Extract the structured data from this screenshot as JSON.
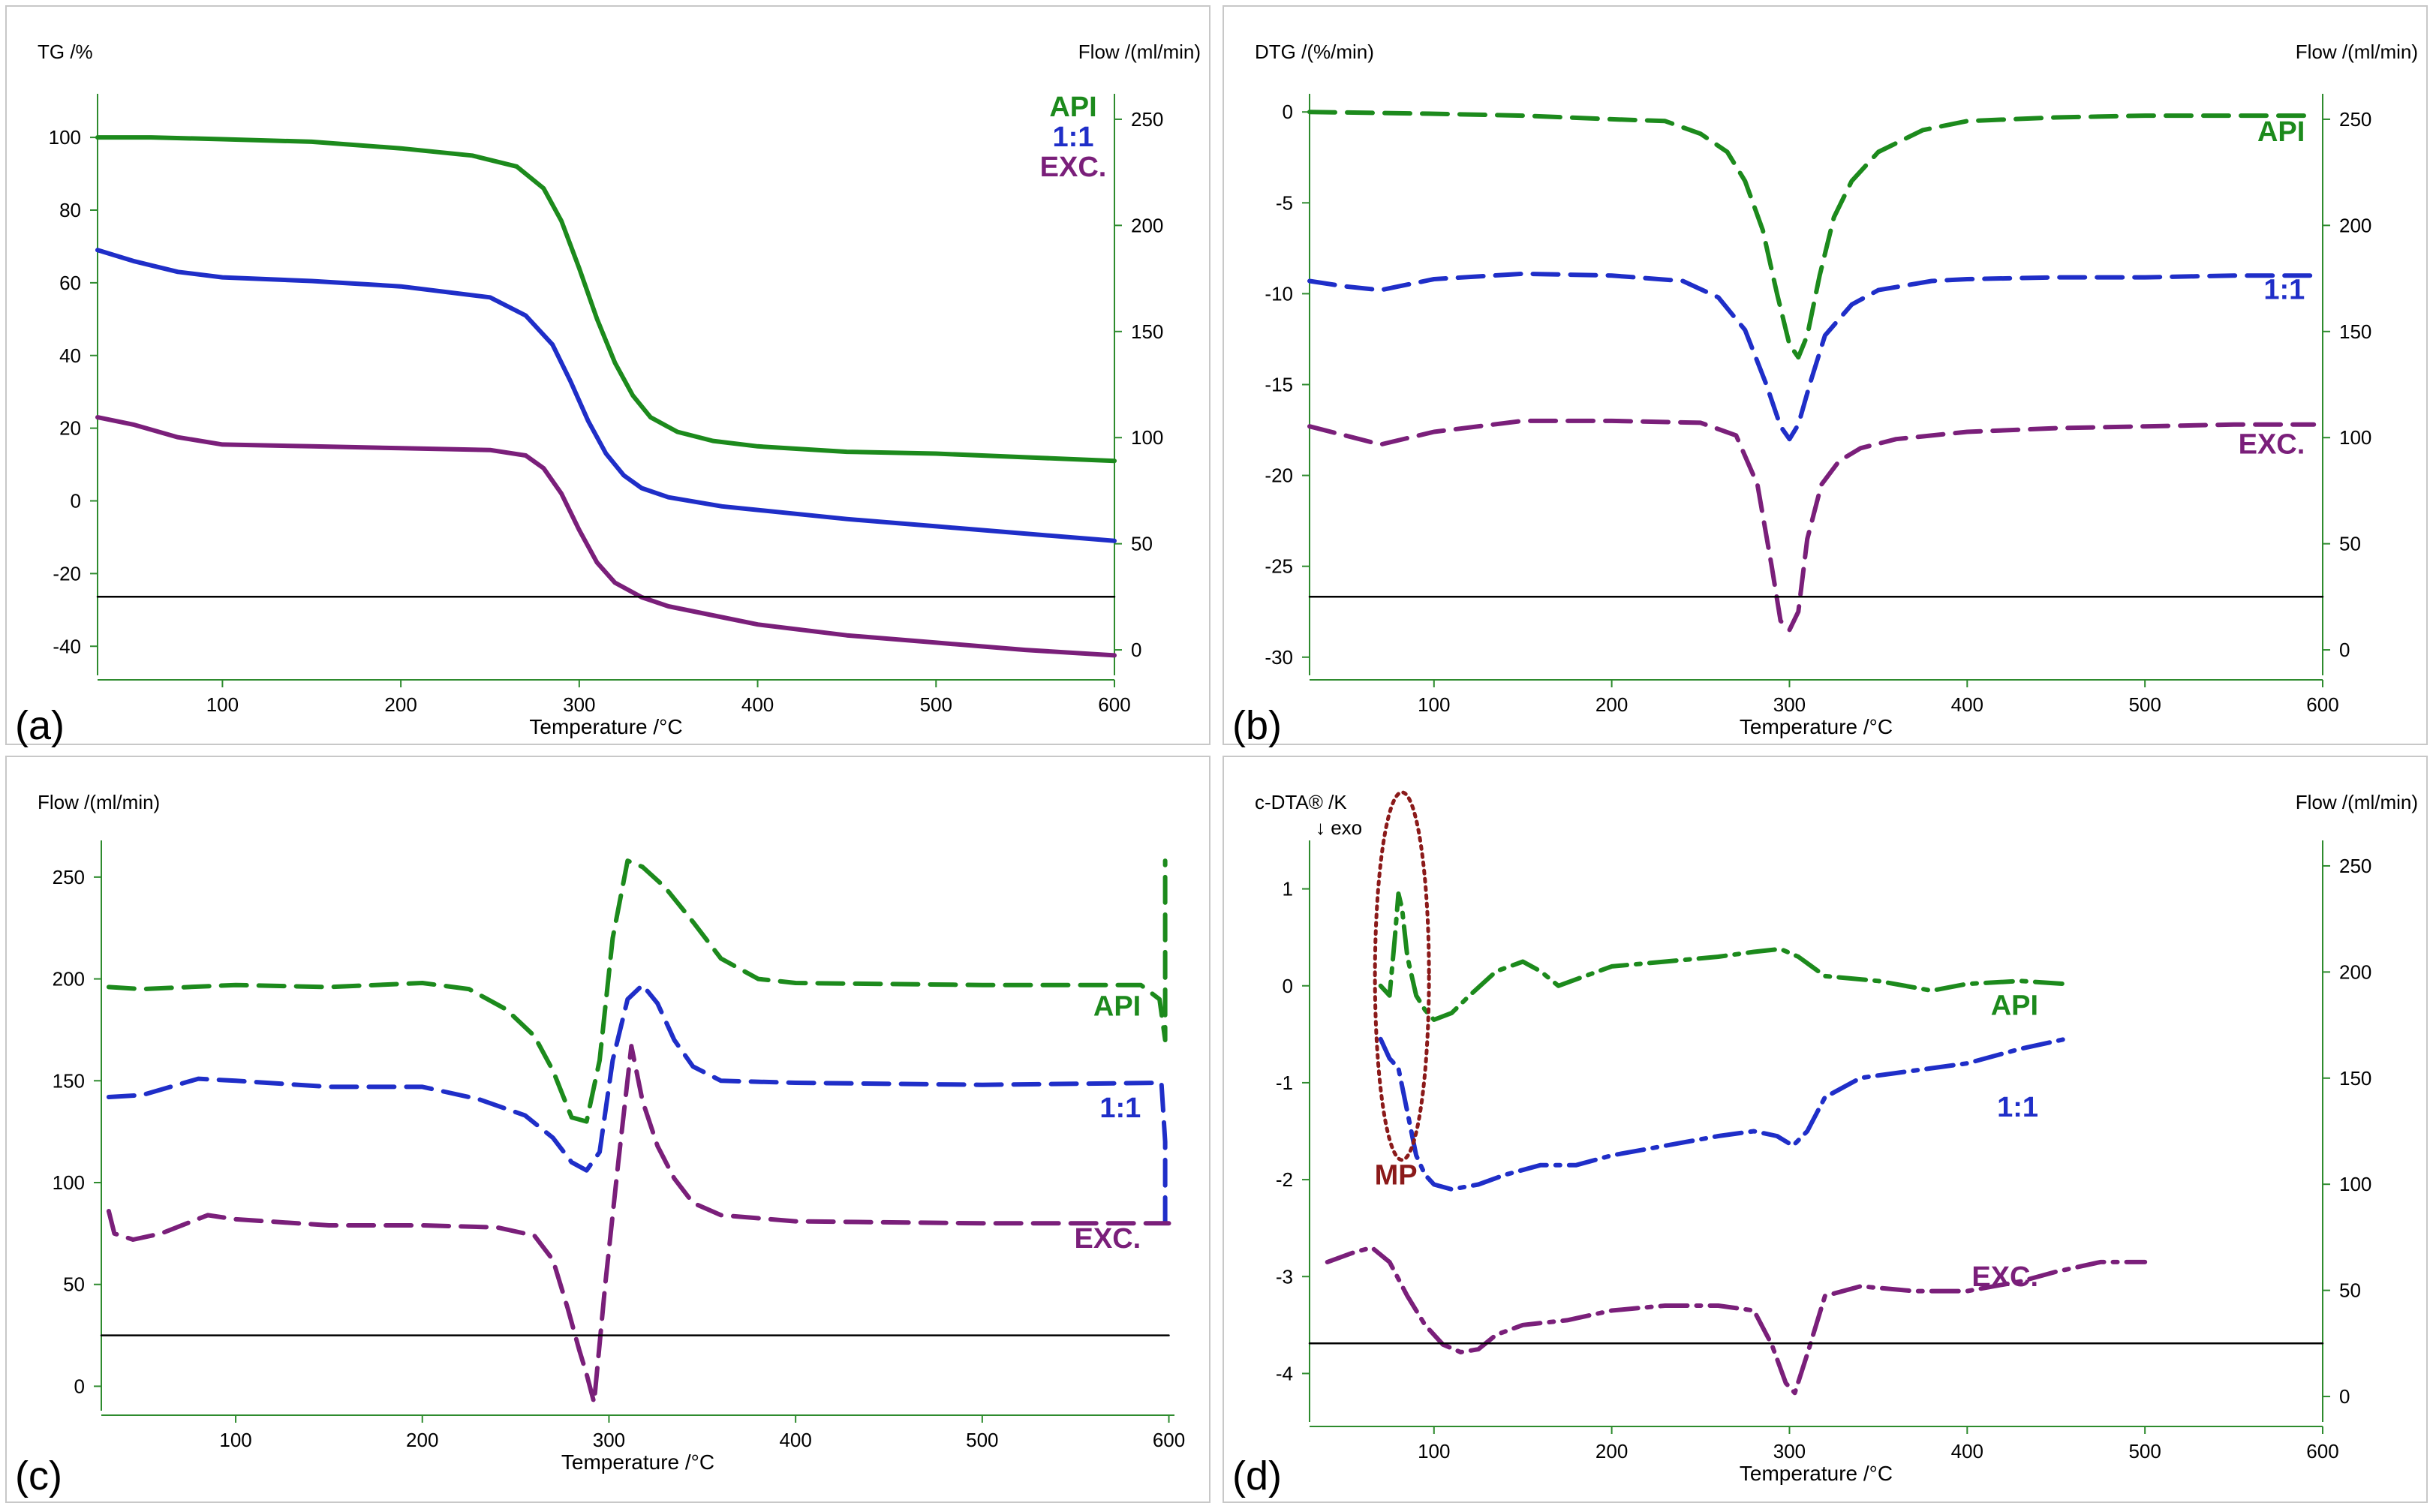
{
  "chart_data": [
    {
      "panel_label": "(a)",
      "type": "line",
      "xlabel": "Temperature /°C",
      "ylabel_left": "TG /%",
      "ylabel_right": "Flow /(ml/min)",
      "x_ticks": [
        100,
        200,
        300,
        400,
        500,
        600
      ],
      "y_left_ticks": [
        -40,
        -20,
        0,
        20,
        40,
        60,
        80,
        100
      ],
      "y_right_ticks": [
        0,
        50,
        100,
        150,
        200,
        250
      ],
      "xlim": [
        30,
        600
      ],
      "ylim_left": [
        -48,
        112
      ],
      "ylim_right": [
        -12,
        262
      ],
      "grid": false,
      "legend": [
        {
          "label": "API",
          "color": "#1c8a1c"
        },
        {
          "label": "1:1",
          "color": "#1f2ec8"
        },
        {
          "label": "EXC.",
          "color": "#7a1f7a"
        }
      ],
      "series": [
        {
          "name": "API",
          "color": "#1c8a1c",
          "dash": "solid",
          "axis": "left",
          "x": [
            30,
            60,
            100,
            150,
            200,
            240,
            265,
            280,
            290,
            300,
            310,
            320,
            330,
            340,
            355,
            375,
            400,
            450,
            500,
            550,
            600
          ],
          "y": [
            100,
            100,
            99.5,
            98.8,
            97,
            95,
            92,
            86,
            77,
            64,
            50,
            38,
            29,
            23,
            19,
            16.5,
            15,
            13.5,
            13,
            12,
            11
          ]
        },
        {
          "name": "1:1",
          "color": "#1f2ec8",
          "dash": "solid",
          "axis": "left",
          "x": [
            30,
            50,
            75,
            100,
            150,
            200,
            250,
            270,
            285,
            295,
            305,
            315,
            325,
            335,
            350,
            380,
            400,
            450,
            500,
            550,
            600
          ],
          "y": [
            69,
            66,
            63,
            61.5,
            60.5,
            59,
            56,
            51,
            43,
            33,
            22,
            13,
            7,
            3.5,
            1,
            -1.5,
            -2.5,
            -5,
            -7,
            -9,
            -11
          ]
        },
        {
          "name": "EXC.",
          "color": "#7a1f7a",
          "dash": "solid",
          "axis": "left",
          "x": [
            30,
            50,
            75,
            100,
            150,
            200,
            250,
            270,
            280,
            290,
            300,
            310,
            320,
            335,
            350,
            380,
            400,
            450,
            500,
            550,
            600
          ],
          "y": [
            23,
            21,
            17.5,
            15.5,
            15,
            14.5,
            14,
            12.5,
            9,
            2,
            -8,
            -17,
            -22.5,
            -26.5,
            -29,
            -32,
            -34,
            -37,
            -39,
            -41,
            -42.5
          ]
        },
        {
          "name": "Flow",
          "color": "#000000",
          "dash": "solid",
          "axis": "right",
          "x": [
            30,
            600
          ],
          "y": [
            25,
            25
          ]
        }
      ]
    },
    {
      "panel_label": "(b)",
      "type": "line",
      "xlabel": "Temperature /°C",
      "ylabel_left": "DTG /(%/min)",
      "ylabel_right": "Flow /(ml/min)",
      "x_ticks": [
        100,
        200,
        300,
        400,
        500,
        600
      ],
      "y_left_ticks": [
        -30,
        -25,
        -20,
        -15,
        -10,
        -5,
        0
      ],
      "y_right_ticks": [
        0,
        50,
        100,
        150,
        200,
        250
      ],
      "xlim": [
        30,
        600
      ],
      "ylim_left": [
        -31,
        1
      ],
      "ylim_right": [
        -12,
        262
      ],
      "grid": false,
      "legend": [
        {
          "label": "API",
          "color": "#1c8a1c"
        },
        {
          "label": "1:1",
          "color": "#1f2ec8"
        },
        {
          "label": "EXC.",
          "color": "#7a1f7a"
        }
      ],
      "series": [
        {
          "name": "API",
          "color": "#1c8a1c",
          "dash": "dash",
          "axis": "left",
          "x": [
            30,
            100,
            150,
            200,
            230,
            250,
            265,
            275,
            285,
            293,
            300,
            305,
            310,
            317,
            325,
            335,
            350,
            375,
            400,
            450,
            500,
            550,
            595
          ],
          "y": [
            0,
            -0.1,
            -0.2,
            -0.4,
            -0.5,
            -1.2,
            -2.2,
            -3.8,
            -6.5,
            -10,
            -12.8,
            -13.5,
            -12.3,
            -9,
            -5.8,
            -3.8,
            -2.2,
            -1,
            -0.5,
            -0.3,
            -0.2,
            -0.2,
            -0.2
          ]
        },
        {
          "name": "1:1",
          "color": "#1f2ec8",
          "dash": "dash",
          "axis": "left",
          "x": [
            30,
            50,
            70,
            100,
            150,
            200,
            240,
            260,
            275,
            287,
            295,
            300,
            305,
            312,
            320,
            335,
            350,
            380,
            400,
            450,
            500,
            550,
            595
          ],
          "y": [
            -9.3,
            -9.6,
            -9.8,
            -9.2,
            -8.9,
            -9,
            -9.3,
            -10.2,
            -12,
            -15,
            -17.3,
            -18,
            -17.2,
            -14.8,
            -12.3,
            -10.6,
            -9.8,
            -9.3,
            -9.2,
            -9.1,
            -9.1,
            -9,
            -9
          ]
        },
        {
          "name": "EXC.",
          "color": "#7a1f7a",
          "dash": "dash",
          "axis": "left",
          "x": [
            30,
            50,
            70,
            100,
            150,
            200,
            250,
            270,
            282,
            290,
            295,
            300,
            305,
            310,
            318,
            328,
            340,
            360,
            400,
            450,
            500,
            550,
            595
          ],
          "y": [
            -17.3,
            -17.8,
            -18.3,
            -17.6,
            -17,
            -17,
            -17.1,
            -17.8,
            -20.5,
            -25,
            -28,
            -28.5,
            -27.5,
            -23.5,
            -20.5,
            -19.2,
            -18.5,
            -18,
            -17.6,
            -17.4,
            -17.3,
            -17.2,
            -17.2
          ]
        },
        {
          "name": "Flow",
          "color": "#000000",
          "dash": "solid",
          "axis": "right",
          "x": [
            30,
            600
          ],
          "y": [
            25,
            25
          ]
        }
      ]
    },
    {
      "panel_label": "(c)",
      "type": "line",
      "xlabel": "Temperature /°C",
      "ylabel_left": "Flow /(ml/min)",
      "x_ticks": [
        100,
        200,
        300,
        400,
        500,
        600
      ],
      "y_left_ticks": [
        0,
        50,
        100,
        150,
        200,
        250
      ],
      "xlim": [
        28,
        603
      ],
      "ylim_left": [
        -12,
        268
      ],
      "grid": false,
      "legend": [
        {
          "label": "API",
          "color": "#1c8a1c"
        },
        {
          "label": "1:1",
          "color": "#1f2ec8"
        },
        {
          "label": "EXC.",
          "color": "#7a1f7a"
        }
      ],
      "series": [
        {
          "name": "API",
          "color": "#1c8a1c",
          "dash": "dash",
          "axis": "left",
          "x": [
            32,
            50,
            100,
            150,
            200,
            225,
            245,
            260,
            270,
            280,
            288,
            295,
            302,
            310,
            318,
            330,
            345,
            360,
            380,
            400,
            500,
            585,
            595,
            598,
            598
          ],
          "y": [
            196,
            195,
            197,
            196,
            198,
            195,
            185,
            172,
            155,
            132,
            130,
            160,
            220,
            258,
            255,
            245,
            228,
            210,
            200,
            198,
            197,
            197,
            190,
            170,
            258
          ]
        },
        {
          "name": "1:1",
          "color": "#1f2ec8",
          "dash": "dash",
          "axis": "left",
          "x": [
            32,
            50,
            80,
            100,
            150,
            200,
            230,
            255,
            270,
            280,
            288,
            295,
            302,
            310,
            318,
            326,
            335,
            345,
            360,
            400,
            500,
            596,
            598,
            598
          ],
          "y": [
            142,
            143,
            151,
            150,
            147,
            147,
            141,
            133,
            122,
            110,
            106,
            115,
            160,
            190,
            197,
            188,
            170,
            157,
            150,
            149,
            148,
            149,
            120,
            80
          ]
        },
        {
          "name": "EXC.",
          "color": "#7a1f7a",
          "dash": "dash",
          "axis": "left",
          "x": [
            32,
            35,
            45,
            60,
            85,
            100,
            150,
            200,
            240,
            260,
            270,
            278,
            284,
            288,
            292,
            298,
            305,
            312,
            318,
            326,
            335,
            345,
            360,
            400,
            500,
            600
          ],
          "y": [
            86,
            75,
            72,
            75,
            84,
            82,
            79,
            79,
            78,
            74,
            62,
            38,
            18,
            6,
            -8,
            50,
            110,
            167,
            140,
            118,
            102,
            90,
            84,
            81,
            80,
            80
          ]
        },
        {
          "name": "Flow",
          "color": "#000000",
          "dash": "solid",
          "axis": "left",
          "x": [
            28,
            600
          ],
          "y": [
            25,
            25
          ]
        }
      ]
    },
    {
      "panel_label": "(d)",
      "type": "line",
      "xlabel": "Temperature /°C",
      "ylabel_left": "c-DTA® /K",
      "ylabel_right": "Flow /(ml/min)",
      "exo_label": "↓ exo",
      "x_ticks": [
        100,
        200,
        300,
        400,
        500,
        600
      ],
      "y_left_ticks": [
        -4,
        -3,
        -2,
        -1,
        0,
        1
      ],
      "y_right_ticks": [
        0,
        50,
        100,
        150,
        200,
        250
      ],
      "xlim": [
        30,
        600
      ],
      "ylim_left": [
        -4.5,
        1.5
      ],
      "ylim_right": [
        -12,
        262
      ],
      "grid": false,
      "legend": [
        {
          "label": "API",
          "color": "#1c8a1c"
        },
        {
          "label": "1:1",
          "color": "#1f2ec8"
        },
        {
          "label": "EXC.",
          "color": "#7a1f7a"
        }
      ],
      "annotation": {
        "label": "MP",
        "color": "#8b1a1a",
        "x": 82,
        "y": -0.8
      },
      "series": [
        {
          "name": "API",
          "color": "#1c8a1c",
          "dash": "dashdot",
          "axis": "left",
          "x": [
            70,
            75,
            78,
            80,
            82,
            85,
            90,
            95,
            100,
            110,
            120,
            135,
            150,
            160,
            170,
            185,
            200,
            230,
            260,
            280,
            295,
            305,
            320,
            350,
            380,
            400,
            430,
            455
          ],
          "y": [
            0,
            -0.1,
            0.5,
            0.95,
            0.8,
            0.3,
            -0.1,
            -0.25,
            -0.35,
            -0.28,
            -0.1,
            0.15,
            0.25,
            0.15,
            0,
            0.1,
            0.2,
            0.25,
            0.3,
            0.35,
            0.38,
            0.3,
            0.1,
            0.05,
            -0.05,
            0.02,
            0.05,
            0.02
          ]
        },
        {
          "name": "1:1",
          "color": "#1f2ec8",
          "dash": "dashdot",
          "axis": "left",
          "x": [
            70,
            75,
            80,
            85,
            90,
            95,
            100,
            110,
            125,
            140,
            160,
            180,
            200,
            230,
            260,
            280,
            293,
            302,
            310,
            320,
            340,
            360,
            400,
            430,
            455
          ],
          "y": [
            -0.55,
            -0.75,
            -0.85,
            -1.3,
            -1.75,
            -1.95,
            -2.05,
            -2.1,
            -2.05,
            -1.95,
            -1.85,
            -1.85,
            -1.75,
            -1.65,
            -1.55,
            -1.5,
            -1.55,
            -1.65,
            -1.5,
            -1.15,
            -0.95,
            -0.9,
            -0.8,
            -0.65,
            -0.55
          ]
        },
        {
          "name": "EXC.",
          "color": "#7a1f7a",
          "dash": "dashdot",
          "axis": "left",
          "x": [
            40,
            55,
            65,
            75,
            85,
            95,
            105,
            115,
            125,
            135,
            150,
            175,
            200,
            230,
            260,
            280,
            290,
            298,
            303,
            310,
            320,
            340,
            370,
            400,
            430,
            450,
            475,
            500
          ],
          "y": [
            -2.85,
            -2.75,
            -2.7,
            -2.85,
            -3.2,
            -3.5,
            -3.7,
            -3.78,
            -3.75,
            -3.6,
            -3.5,
            -3.45,
            -3.35,
            -3.3,
            -3.3,
            -3.35,
            -3.7,
            -4.1,
            -4.2,
            -3.8,
            -3.2,
            -3.1,
            -3.15,
            -3.15,
            -3.05,
            -2.95,
            -2.85,
            -2.85
          ]
        },
        {
          "name": "Flow",
          "color": "#000000",
          "dash": "solid",
          "axis": "right",
          "x": [
            30,
            600
          ],
          "y": [
            25,
            25
          ]
        }
      ]
    }
  ]
}
